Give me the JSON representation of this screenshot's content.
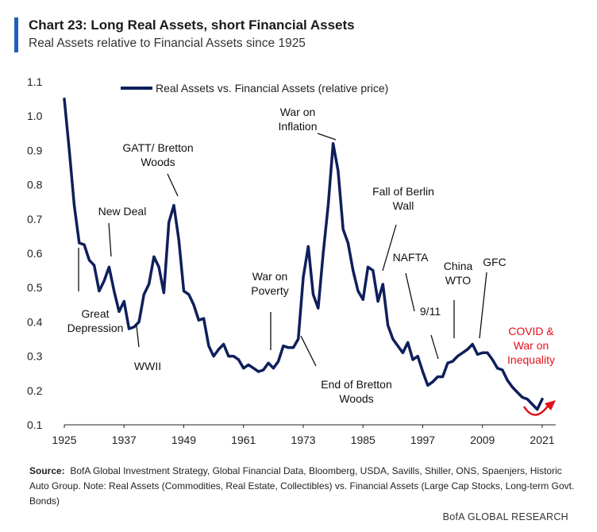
{
  "header": {
    "title": "Chart 23: Long Real Assets, short Financial Assets",
    "subtitle": "Real Assets relative to Financial Assets since 1925"
  },
  "colors": {
    "accent": "#1f5fbf",
    "series": "#0e1f5b",
    "highlight": "#e3101a"
  },
  "footer": {
    "source_label": "Source:",
    "source_text": "BofA Global Investment Strategy, Global Financial Data, Bloomberg, USDA, Savills, Shiller, ONS, Spaenjers, Historic Auto Group. Note: Real Assets (Commodities, Real Estate, Collectibles) vs. Financial Assets (Large Cap Stocks, Long-term Govt. Bonds)",
    "brand": "BofA GLOBAL RESEARCH"
  },
  "chart_data": {
    "type": "line",
    "title": "Chart 23: Long Real Assets, short Financial Assets",
    "subtitle": "Real Assets relative to Financial Assets since 1925",
    "xlabel": "",
    "ylabel": "",
    "xlim": [
      1925,
      2023
    ],
    "ylim": [
      0.1,
      1.1
    ],
    "xticks": [
      1925,
      1937,
      1949,
      1961,
      1973,
      1985,
      1997,
      2009,
      2021
    ],
    "yticks": [
      "0.1",
      "0.2",
      "0.3",
      "0.4",
      "0.5",
      "0.6",
      "0.7",
      "0.8",
      "0.9",
      "1.0",
      "1.1"
    ],
    "grid": false,
    "legend": "top-center",
    "series": [
      {
        "name": "Real Assets vs. Financial Assets (relative price)",
        "x": [
          1925,
          1926,
          1927,
          1928,
          1929,
          1930,
          1931,
          1932,
          1933,
          1934,
          1935,
          1936,
          1937,
          1938,
          1939,
          1940,
          1941,
          1942,
          1943,
          1944,
          1945,
          1946,
          1947,
          1948,
          1949,
          1950,
          1951,
          1952,
          1953,
          1954,
          1955,
          1956,
          1957,
          1958,
          1959,
          1960,
          1961,
          1962,
          1963,
          1964,
          1965,
          1966,
          1967,
          1968,
          1969,
          1970,
          1971,
          1972,
          1973,
          1974,
          1975,
          1976,
          1977,
          1978,
          1979,
          1980,
          1981,
          1982,
          1983,
          1984,
          1985,
          1986,
          1987,
          1988,
          1989,
          1990,
          1991,
          1992,
          1993,
          1994,
          1995,
          1996,
          1997,
          1998,
          1999,
          2000,
          2001,
          2002,
          2003,
          2004,
          2005,
          2006,
          2007,
          2008,
          2009,
          2010,
          2011,
          2012,
          2013,
          2014,
          2015,
          2016,
          2017,
          2018,
          2019,
          2020,
          2021
        ],
        "values": [
          1.05,
          0.9,
          0.74,
          0.63,
          0.625,
          0.58,
          0.565,
          0.49,
          0.52,
          0.56,
          0.49,
          0.43,
          0.46,
          0.38,
          0.385,
          0.4,
          0.48,
          0.51,
          0.59,
          0.56,
          0.485,
          0.69,
          0.74,
          0.64,
          0.49,
          0.48,
          0.45,
          0.405,
          0.41,
          0.33,
          0.3,
          0.32,
          0.335,
          0.3,
          0.3,
          0.29,
          0.265,
          0.275,
          0.265,
          0.255,
          0.26,
          0.28,
          0.265,
          0.285,
          0.33,
          0.325,
          0.325,
          0.35,
          0.53,
          0.62,
          0.48,
          0.44,
          0.6,
          0.74,
          0.92,
          0.84,
          0.67,
          0.63,
          0.55,
          0.49,
          0.465,
          0.56,
          0.55,
          0.46,
          0.51,
          0.39,
          0.35,
          0.33,
          0.31,
          0.34,
          0.29,
          0.3,
          0.255,
          0.215,
          0.225,
          0.24,
          0.24,
          0.28,
          0.285,
          0.3,
          0.31,
          0.32,
          0.335,
          0.305,
          0.31,
          0.31,
          0.29,
          0.265,
          0.26,
          0.23,
          0.21,
          0.195,
          0.18,
          0.175,
          0.16,
          0.145,
          0.175
        ]
      }
    ],
    "annotations": [
      {
        "id": "great-depression",
        "lines": [
          "Great",
          "Depression"
        ],
        "year": 1929,
        "color": "black"
      },
      {
        "id": "new-deal",
        "lines": [
          "New Deal"
        ],
        "year": 1934,
        "color": "black"
      },
      {
        "id": "wwii",
        "lines": [
          "WWII"
        ],
        "year": 1941,
        "color": "black"
      },
      {
        "id": "gatt-bretton",
        "lines": [
          "GATT/ Bretton",
          "Woods"
        ],
        "year": 1947,
        "color": "black"
      },
      {
        "id": "war-on-poverty",
        "lines": [
          "War on",
          "Poverty"
        ],
        "year": 1966,
        "color": "black"
      },
      {
        "id": "end-bretton",
        "lines": [
          "End of Bretton",
          "Woods"
        ],
        "year": 1971,
        "color": "black"
      },
      {
        "id": "war-on-inflation",
        "lines": [
          "War on",
          "Inflation"
        ],
        "year": 1980,
        "color": "black"
      },
      {
        "id": "fall-of-berlin",
        "lines": [
          "Fall of Berlin",
          "Wall"
        ],
        "year": 1989,
        "color": "black"
      },
      {
        "id": "nafta",
        "lines": [
          "NAFTA"
        ],
        "year": 1994,
        "color": "black"
      },
      {
        "id": "nine-eleven",
        "lines": [
          "9/11"
        ],
        "year": 2001,
        "color": "black"
      },
      {
        "id": "china-wto",
        "lines": [
          "China",
          "WTO"
        ],
        "year": 2001,
        "color": "black"
      },
      {
        "id": "gfc",
        "lines": [
          "GFC"
        ],
        "year": 2008,
        "color": "black"
      },
      {
        "id": "covid",
        "lines": [
          "COVID &",
          "War on",
          "Inequality"
        ],
        "year": 2020,
        "color": "red"
      }
    ]
  }
}
